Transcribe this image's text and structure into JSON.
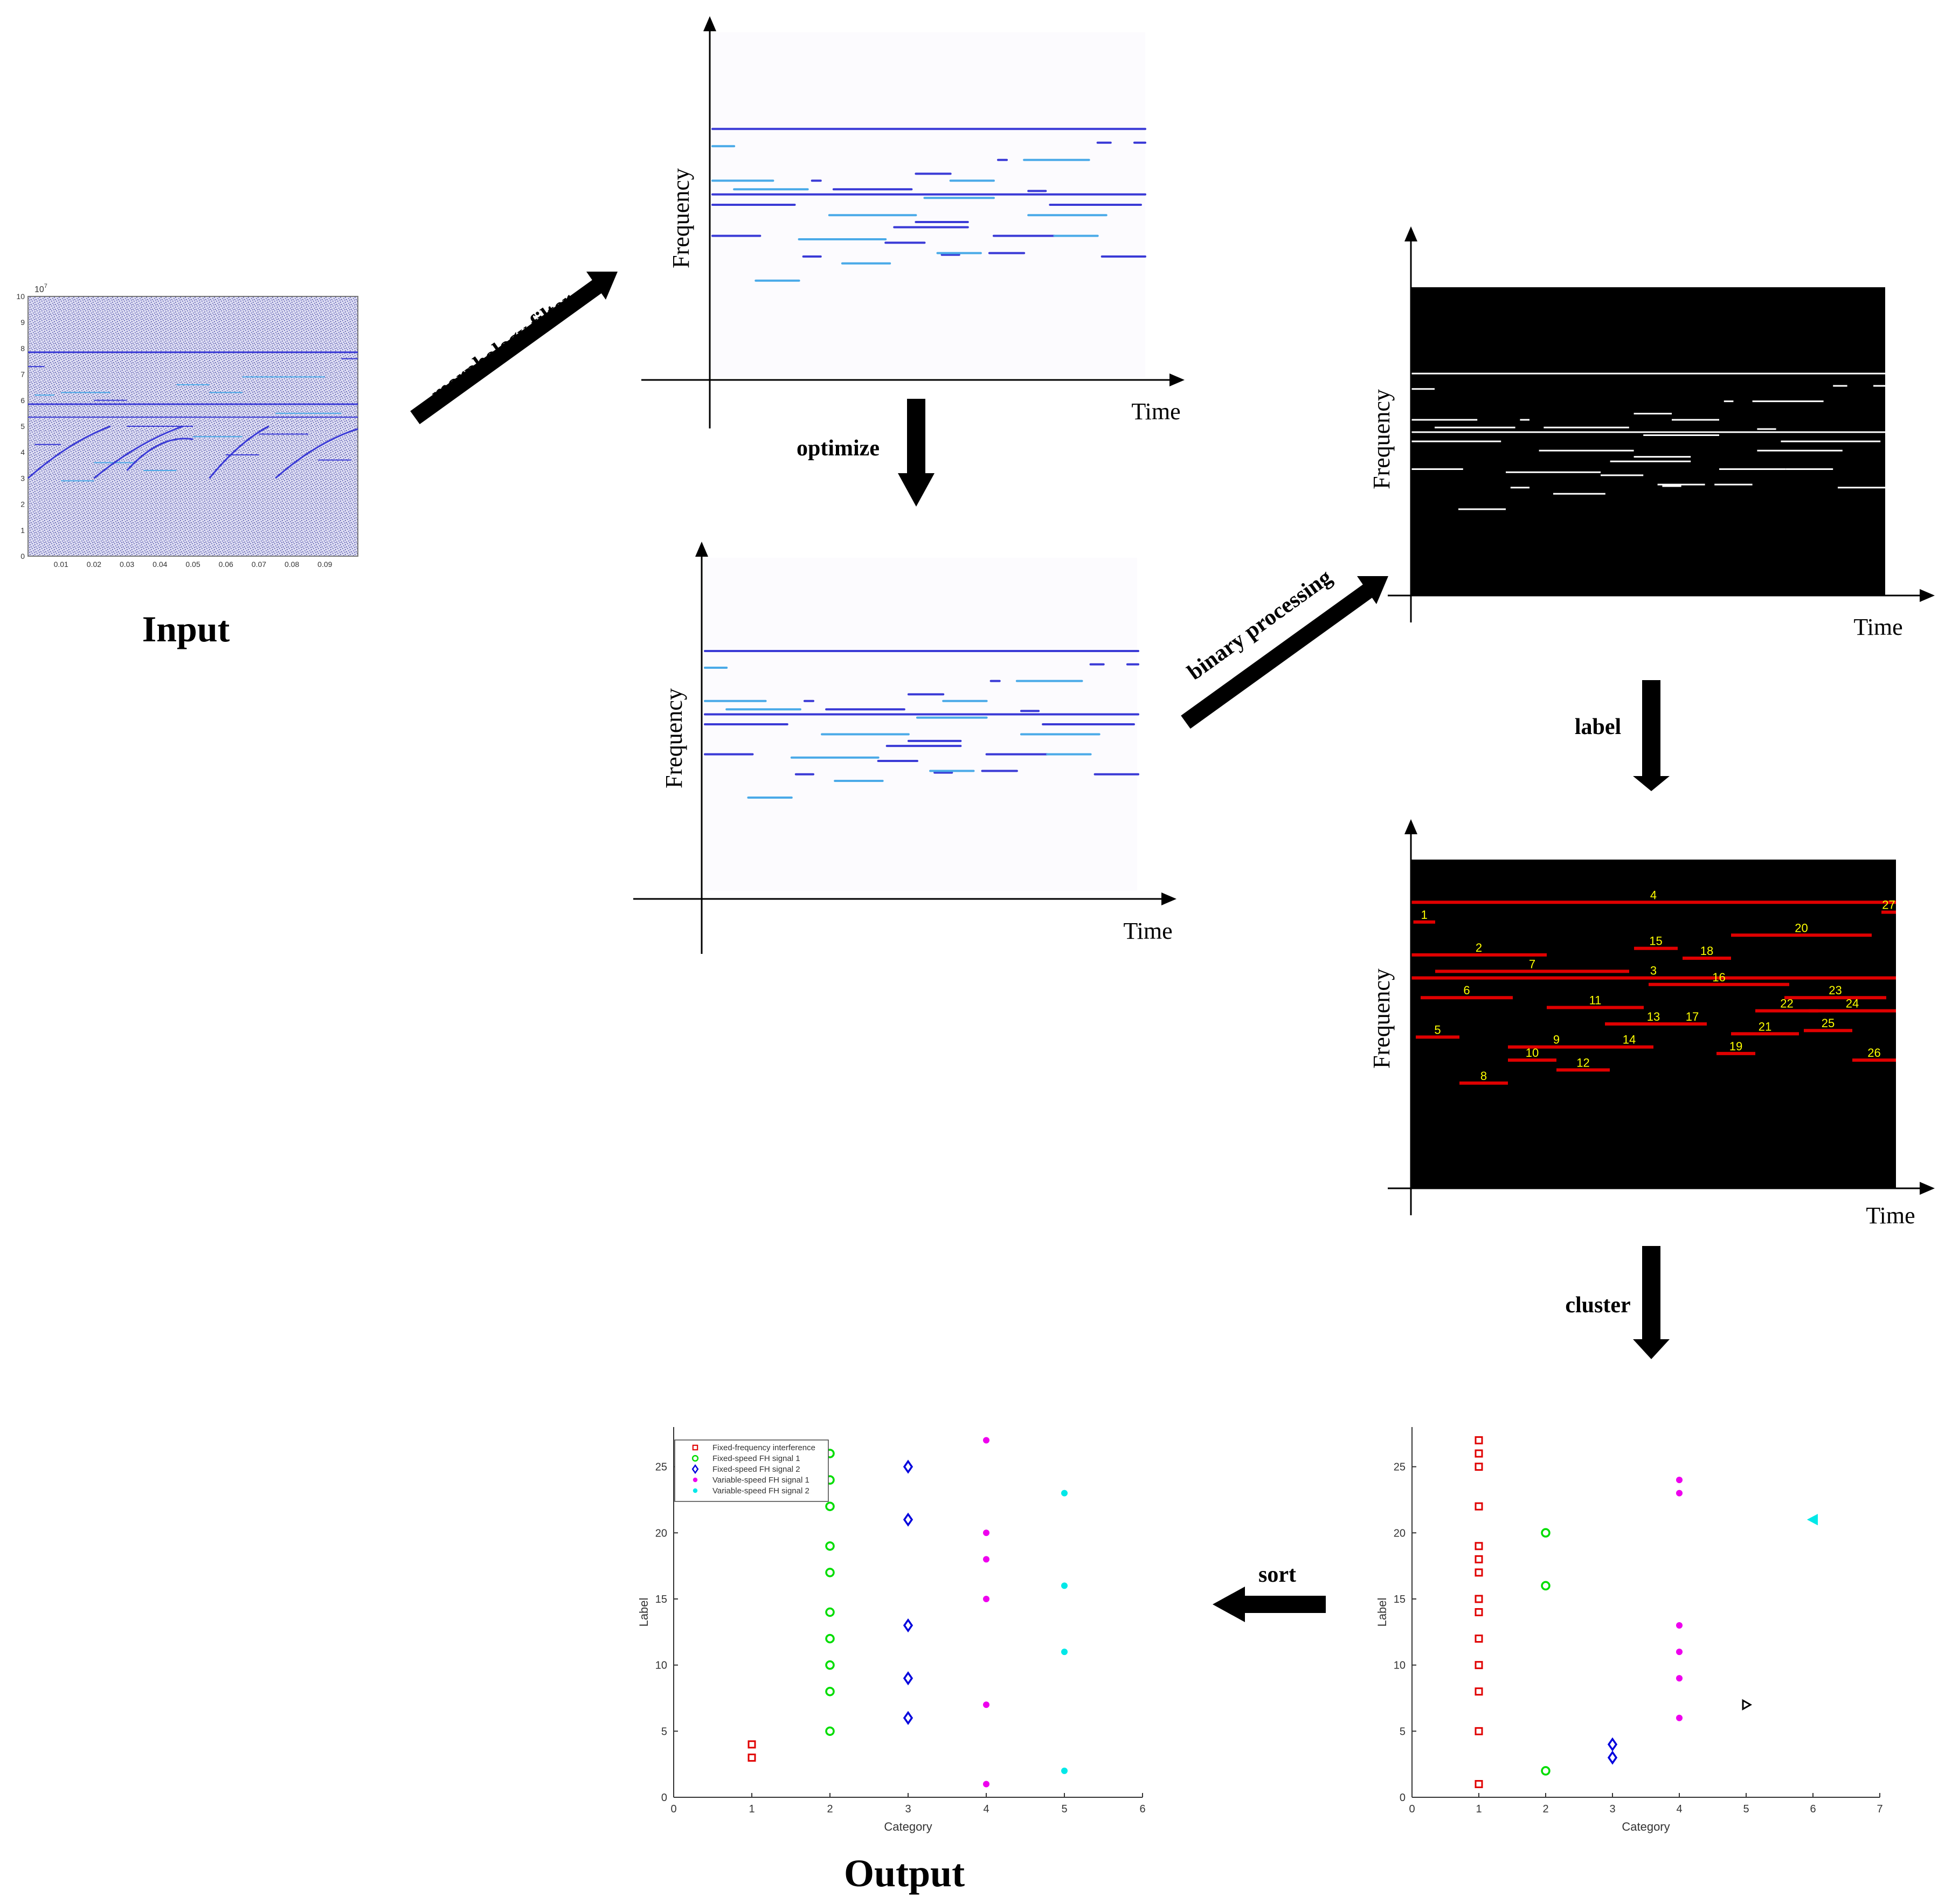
{
  "steps": {
    "morphology": "morphology filter",
    "optimize": "optimize",
    "binary": "binary processing",
    "label": "label",
    "cluster": "cluster",
    "sort": "sort"
  },
  "titles": {
    "input": "Input",
    "output": "Output"
  },
  "axis_words": {
    "time": "Time",
    "frequency": "Frequency"
  },
  "colors": {
    "arrow": "#000000",
    "dark_blue": "#3a3ad6",
    "light_blue": "#4aaae8",
    "red_line": "#e00000",
    "label_text": "#ffff00",
    "cat_red": "#e00000",
    "cat_green": "#00dd00",
    "cat_blue": "#0000dd",
    "cat_magenta": "#ee00ee",
    "cat_cyan": "#00e8e8",
    "cat_black": "#000000"
  },
  "input_plot": {
    "exponent": "10",
    "exponent_power": "7",
    "y_ticks": [
      "0",
      "1",
      "2",
      "3",
      "4",
      "5",
      "6",
      "7",
      "8",
      "9",
      "10"
    ],
    "x_ticks": [
      "0.01",
      "0.02",
      "0.03",
      "0.04",
      "0.05",
      "0.06",
      "0.07",
      "0.08",
      "0.09"
    ]
  },
  "tf_segments": {
    "full": [
      [
        0.0,
        1.0,
        0.28,
        "dark"
      ],
      [
        0.0,
        1.0,
        0.47,
        "dark"
      ]
    ],
    "short": [
      [
        0.0,
        0.05,
        0.33,
        "light"
      ],
      [
        0.975,
        1.0,
        0.32,
        "dark"
      ],
      [
        0.0,
        0.14,
        0.43,
        "light"
      ],
      [
        0.05,
        0.22,
        0.455,
        "light"
      ],
      [
        0.23,
        0.25,
        0.43,
        "dark"
      ],
      [
        0.0,
        0.19,
        0.5,
        "dark"
      ],
      [
        0.28,
        0.46,
        0.455,
        "dark"
      ],
      [
        0.47,
        0.55,
        0.41,
        "dark"
      ],
      [
        0.55,
        0.65,
        0.43,
        "light"
      ],
      [
        0.66,
        0.68,
        0.37,
        "dark"
      ],
      [
        0.72,
        0.87,
        0.37,
        "light"
      ],
      [
        0.89,
        0.92,
        0.32,
        "dark"
      ],
      [
        0.49,
        0.65,
        0.48,
        "light"
      ],
      [
        0.73,
        0.77,
        0.46,
        "dark"
      ],
      [
        0.78,
        0.99,
        0.5,
        "dark"
      ],
      [
        0.27,
        0.47,
        0.53,
        "light"
      ],
      [
        0.47,
        0.59,
        0.55,
        "dark"
      ],
      [
        0.73,
        0.91,
        0.53,
        "light"
      ],
      [
        0.0,
        0.11,
        0.59,
        "dark"
      ],
      [
        0.2,
        0.4,
        0.6,
        "light"
      ],
      [
        0.42,
        0.59,
        0.565,
        "dark"
      ],
      [
        0.65,
        0.79,
        0.59,
        "dark"
      ],
      [
        0.79,
        0.89,
        0.59,
        "light"
      ],
      [
        0.4,
        0.49,
        0.61,
        "dark"
      ],
      [
        0.21,
        0.25,
        0.65,
        "dark"
      ],
      [
        0.3,
        0.41,
        0.67,
        "light"
      ],
      [
        0.53,
        0.57,
        0.645,
        "dark"
      ],
      [
        0.52,
        0.62,
        0.64,
        "light"
      ],
      [
        0.64,
        0.72,
        0.64,
        "dark"
      ],
      [
        0.9,
        1.0,
        0.65,
        "dark"
      ],
      [
        0.1,
        0.2,
        0.72,
        "light"
      ]
    ]
  },
  "label_segments": [
    {
      "label": "1",
      "t0": 0.005,
      "t1": 0.05,
      "f": 0.19
    },
    {
      "label": "2",
      "t0": 0.0,
      "t1": 0.28,
      "f": 0.29
    },
    {
      "label": "3",
      "t0": 0.0,
      "t1": 1.0,
      "f": 0.36
    },
    {
      "label": "4",
      "t0": 0.0,
      "t1": 1.0,
      "f": 0.13
    },
    {
      "label": "5",
      "t0": 0.01,
      "t1": 0.1,
      "f": 0.54
    },
    {
      "label": "6",
      "t0": 0.02,
      "t1": 0.21,
      "f": 0.42
    },
    {
      "label": "7",
      "t0": 0.05,
      "t1": 0.45,
      "f": 0.34
    },
    {
      "label": "8",
      "t0": 0.1,
      "t1": 0.2,
      "f": 0.68
    },
    {
      "label": "9",
      "t0": 0.2,
      "t1": 0.4,
      "f": 0.57
    },
    {
      "label": "10",
      "t0": 0.2,
      "t1": 0.3,
      "f": 0.61
    },
    {
      "label": "11",
      "t0": 0.28,
      "t1": 0.48,
      "f": 0.45
    },
    {
      "label": "12",
      "t0": 0.3,
      "t1": 0.41,
      "f": 0.64
    },
    {
      "label": "13",
      "t0": 0.4,
      "t1": 0.6,
      "f": 0.5
    },
    {
      "label": "14",
      "t0": 0.4,
      "t1": 0.5,
      "f": 0.57
    },
    {
      "label": "15",
      "t0": 0.46,
      "t1": 0.55,
      "f": 0.27
    },
    {
      "label": "16",
      "t0": 0.49,
      "t1": 0.78,
      "f": 0.38
    },
    {
      "label": "17",
      "t0": 0.55,
      "t1": 0.61,
      "f": 0.5
    },
    {
      "label": "18",
      "t0": 0.56,
      "t1": 0.66,
      "f": 0.3
    },
    {
      "label": "19",
      "t0": 0.63,
      "t1": 0.71,
      "f": 0.59
    },
    {
      "label": "20",
      "t0": 0.66,
      "t1": 0.95,
      "f": 0.23
    },
    {
      "label": "21",
      "t0": 0.66,
      "t1": 0.8,
      "f": 0.53
    },
    {
      "label": "22",
      "t0": 0.71,
      "t1": 0.84,
      "f": 0.46
    },
    {
      "label": "23",
      "t0": 0.77,
      "t1": 0.98,
      "f": 0.42
    },
    {
      "label": "24",
      "t0": 0.82,
      "t1": 1.0,
      "f": 0.46
    },
    {
      "label": "25",
      "t0": 0.81,
      "t1": 0.91,
      "f": 0.52
    },
    {
      "label": "26",
      "t0": 0.91,
      "t1": 1.0,
      "f": 0.61
    },
    {
      "label": "27",
      "t0": 0.97,
      "t1": 1.0,
      "f": 0.16
    }
  ],
  "chart_data": [
    {
      "type": "scatter",
      "role": "cluster result",
      "xlabel": "Category",
      "ylabel": "Label",
      "xlim": [
        0,
        7
      ],
      "ylim": [
        0,
        28
      ],
      "x_ticks": [
        "0",
        "1",
        "2",
        "3",
        "4",
        "5",
        "6",
        "7"
      ],
      "y_ticks": [
        "0",
        "5",
        "10",
        "15",
        "20",
        "25"
      ],
      "series": [
        {
          "marker": "square",
          "color": "#e00000",
          "x": 1,
          "values": [
            1,
            5,
            8,
            10,
            12,
            14,
            15,
            17,
            18,
            19,
            22,
            25,
            26,
            27
          ]
        },
        {
          "marker": "circle",
          "color": "#00dd00",
          "x": 2,
          "values": [
            2,
            16,
            20
          ]
        },
        {
          "marker": "diamond",
          "color": "#0000dd",
          "x": 3,
          "values": [
            3,
            4
          ]
        },
        {
          "marker": "dot",
          "color": "#ee00ee",
          "x": 4,
          "values": [
            6,
            9,
            11,
            13,
            23,
            24
          ]
        },
        {
          "marker": "tri-right",
          "color": "#000000",
          "x": 5,
          "values": [
            7
          ]
        },
        {
          "marker": "tri-left",
          "color": "#00e8e8",
          "x": 6,
          "values": [
            21
          ]
        }
      ]
    },
    {
      "type": "scatter",
      "role": "sorted output",
      "xlabel": "Category",
      "ylabel": "Label",
      "xlim": [
        0,
        6
      ],
      "ylim": [
        0,
        28
      ],
      "x_ticks": [
        "0",
        "1",
        "2",
        "3",
        "4",
        "5",
        "6"
      ],
      "y_ticks": [
        "0",
        "5",
        "10",
        "15",
        "20",
        "25"
      ],
      "series": [
        {
          "name": "Fixed-frequency interference",
          "marker": "square",
          "color": "#e00000",
          "x": 1,
          "values": [
            3,
            4
          ]
        },
        {
          "name": "Fixed-speed FH signal 1",
          "marker": "circle",
          "color": "#00dd00",
          "x": 2,
          "values": [
            5,
            8,
            10,
            12,
            14,
            17,
            19,
            22,
            24,
            26
          ]
        },
        {
          "name": "Fixed-speed FH signal 2",
          "marker": "diamond",
          "color": "#0000dd",
          "x": 3,
          "values": [
            6,
            9,
            13,
            21,
            25
          ]
        },
        {
          "name": "Variable-speed FH signal 1",
          "marker": "dot",
          "color": "#ee00ee",
          "x": 4,
          "values": [
            1,
            7,
            15,
            18,
            20,
            27
          ]
        },
        {
          "name": "Variable-speed FH signal 2",
          "marker": "dot",
          "color": "#00e8e8",
          "x": 5,
          "values": [
            2,
            11,
            16,
            23
          ]
        }
      ]
    }
  ]
}
